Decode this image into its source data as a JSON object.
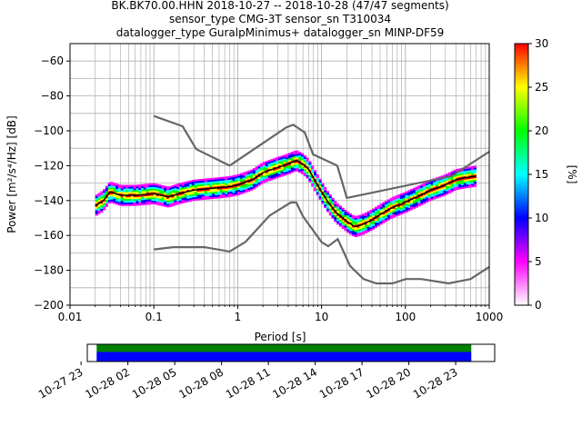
{
  "chart_data": {
    "type": "heatmap",
    "title_lines": [
      "BK.BK70.00.HHN   2018-10-27 -- 2018-10-28  (47/47 segments)",
      "sensor_type CMG-3T sensor_sn T310034",
      "datalogger_type GuralpMinimus+ datalogger_sn MINP-DF59"
    ],
    "xlabel": "Period [s]",
    "ylabel": "Power [m²/s⁴/Hz] [dB]",
    "xscale": "log",
    "xlim": [
      0.01,
      1000
    ],
    "ylim": [
      -200,
      -50
    ],
    "xticks": [
      "0.01",
      "0.1",
      "1",
      "10",
      "100",
      "1000"
    ],
    "yticks": [
      "−60",
      "−80",
      "−100",
      "−120",
      "−140",
      "−160",
      "−180",
      "−200"
    ],
    "grid": true,
    "colorbar": {
      "label": "[%]",
      "range": [
        0,
        30
      ],
      "ticks": [
        "0",
        "5",
        "10",
        "15",
        "20",
        "25",
        "30"
      ],
      "colors": [
        "#ffffff",
        "#ff00ff",
        "#0000ff",
        "#00ffff",
        "#00ff00",
        "#ffff00",
        "#ff0000"
      ]
    },
    "noise_model_high": {
      "period": [
        0.1,
        0.22,
        0.32,
        0.8,
        3.8,
        4.6,
        6.3,
        7.9,
        15.4,
        20,
        354.8,
        1000
      ],
      "power": [
        -91.5,
        -97.4,
        -110.5,
        -120,
        -98,
        -96.5,
        -101,
        -113.5,
        -120,
        -138.5,
        -126,
        -112
      ]
    },
    "noise_model_low": {
      "period": [
        0.1,
        0.17,
        0.4,
        0.8,
        1.24,
        2.4,
        4.3,
        5.0,
        6.0,
        10.0,
        12.0,
        15.6,
        21.9,
        31.6,
        45,
        70,
        101,
        154,
        328,
        600,
        1000
      ],
      "power": [
        -168,
        -166.7,
        -166.7,
        -169.2,
        -163.7,
        -148.6,
        -141.1,
        -141.1,
        -149,
        -163.8,
        -166.2,
        -162.1,
        -177.5,
        -185,
        -187.5,
        -187.5,
        -185,
        -185,
        -187.5,
        -185,
        -178
      ]
    },
    "mode_curve": {
      "period": [
        0.02,
        0.025,
        0.03,
        0.04,
        0.06,
        0.1,
        0.15,
        0.2,
        0.3,
        0.5,
        0.8,
        1.0,
        1.5,
        2.0,
        3.0,
        4.0,
        5.0,
        6.0,
        7.0,
        8.0,
        10,
        12,
        15,
        20,
        25,
        30,
        40,
        50,
        70,
        100,
        150,
        200,
        300,
        400,
        500,
        700
      ],
      "power": [
        -143,
        -140,
        -135,
        -137,
        -137,
        -136,
        -138,
        -136,
        -134,
        -133,
        -132,
        -131,
        -128,
        -124,
        -121,
        -119,
        -117,
        -119,
        -122,
        -127,
        -135,
        -141,
        -147,
        -152,
        -155,
        -154,
        -151,
        -148,
        -144,
        -141,
        -137,
        -134,
        -131,
        -128,
        -127,
        -126
      ]
    },
    "spread_db": 6
  },
  "timeline": {
    "tick_labels": [
      "10-27 23",
      "10-28 02",
      "10-28 05",
      "10-28 08",
      "10-28 11",
      "10-28 14",
      "10-28 17",
      "10-28 20",
      "10-28 23"
    ],
    "data_start_hour": 0,
    "data_end_hour": 24,
    "axis_start_hour": -0.6,
    "axis_end_hour": 25.5,
    "bar_colors": [
      "#008000",
      "#0000ff"
    ]
  }
}
